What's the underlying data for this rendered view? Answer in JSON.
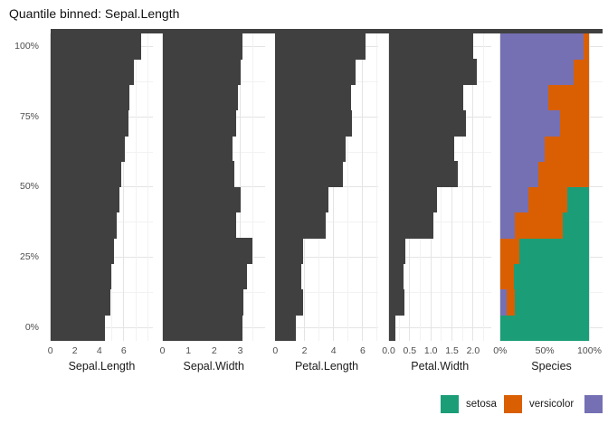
{
  "title": "Quantile binned: Sepal.Length",
  "colors": {
    "bar": "#404040",
    "setosa": "#1b9e77",
    "versicolor": "#d95f02",
    "virginica": "#7570b3",
    "grid_major": "#e4e4e4",
    "grid_minor": "#f2f2f2",
    "tick_text": "#4d4d4d",
    "label_text": "#1a1a1a",
    "background": "#ffffff"
  },
  "y_axis": {
    "tick_labels": [
      "100%",
      "75%",
      "50%",
      "25%",
      "0%"
    ],
    "tick_pcts": [
      100,
      75,
      50,
      25,
      0
    ],
    "minor_pcts": [
      87.5,
      62.5,
      37.5,
      12.5
    ]
  },
  "legend": {
    "items": [
      {
        "label": "setosa",
        "color_key": "setosa"
      },
      {
        "label": "versicolor",
        "color_key": "versicolor"
      },
      {
        "label": "",
        "color_key": "virginica"
      }
    ]
  },
  "chart_data": {
    "type": "bar",
    "orientation": "horizontal",
    "title": "Quantile binned: Sepal.Length",
    "n_bands": 12,
    "band_order": "bottom_to_top",
    "ylim": [
      "0%",
      "100%"
    ],
    "y_tick_labels": [
      "0%",
      "25%",
      "50%",
      "75%",
      "100%"
    ],
    "grid": true,
    "legend_position": "bottom-right",
    "panels": [
      {
        "xlabel": "Sepal.Length",
        "x_ticks": [
          0,
          2,
          4,
          6
        ],
        "x_tick_labels": [
          "0",
          "2",
          "4",
          "6"
        ],
        "x_minor": [
          1,
          3,
          5,
          7,
          8
        ],
        "x_max": 8.4,
        "values": [
          4.5,
          4.89,
          5.01,
          5.19,
          5.43,
          5.63,
          5.82,
          6.12,
          6.37,
          6.49,
          6.86,
          7.43
        ]
      },
      {
        "xlabel": "Sepal.Width",
        "x_ticks": [
          0,
          1,
          2,
          3
        ],
        "x_tick_labels": [
          "0",
          "1",
          "2",
          "3"
        ],
        "x_minor": [
          0.5,
          1.5,
          2.5,
          3.5
        ],
        "x_max": 3.96,
        "values": [
          3.1,
          3.11,
          3.25,
          3.48,
          2.85,
          3.02,
          2.79,
          2.72,
          2.85,
          2.93,
          3.02,
          3.08
        ]
      },
      {
        "xlabel": "Petal.Length",
        "x_ticks": [
          0,
          2,
          4,
          6
        ],
        "x_tick_labels": [
          "0",
          "2",
          "4",
          "6"
        ],
        "x_minor": [
          1,
          3,
          5,
          7
        ],
        "x_max": 7.05,
        "values": [
          1.43,
          1.91,
          1.76,
          1.91,
          3.46,
          3.66,
          4.66,
          4.81,
          5.26,
          5.18,
          5.53,
          6.21
        ]
      },
      {
        "xlabel": "Petal.Width",
        "x_ticks": [
          0,
          0.5,
          1,
          1.5,
          2
        ],
        "x_tick_labels": [
          "0.0",
          "0.5",
          "1.0",
          "1.5",
          "2.0"
        ],
        "x_minor": [
          0.25,
          0.75,
          1.25,
          1.75,
          2.25
        ],
        "x_max": 2.43,
        "values": [
          0.17,
          0.38,
          0.36,
          0.39,
          1.06,
          1.14,
          1.63,
          1.56,
          1.82,
          1.77,
          2.09,
          2.0
        ]
      },
      {
        "xlabel": "Species",
        "panel_type": "stacked",
        "x_ticks": [
          0,
          50,
          100
        ],
        "x_tick_labels": [
          "0%",
          "50%",
          "100%"
        ],
        "x_minor": [
          25,
          75
        ],
        "x_max": 115,
        "stack_order": [
          "virginica",
          "versicolor",
          "setosa"
        ],
        "stacks": [
          [
            0,
            0,
            100
          ],
          [
            7,
            9,
            84
          ],
          [
            0,
            15,
            85
          ],
          [
            0,
            21,
            79
          ],
          [
            16,
            54,
            30
          ],
          [
            32,
            43,
            25
          ],
          [
            43,
            57,
            0
          ],
          [
            50,
            50,
            0
          ],
          [
            67,
            33,
            0
          ],
          [
            54,
            46,
            0
          ],
          [
            82,
            18,
            0
          ],
          [
            93,
            7,
            0
          ]
        ]
      }
    ]
  }
}
